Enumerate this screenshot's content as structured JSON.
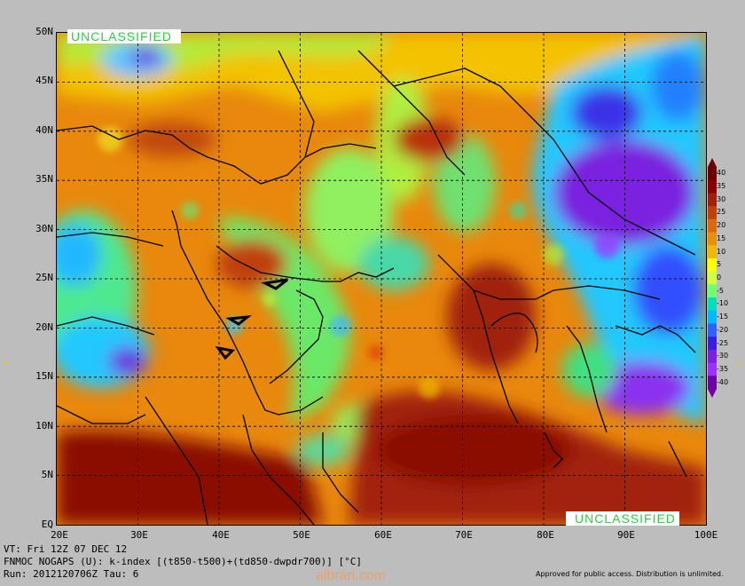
{
  "map": {
    "watermark_top": "UNCLASSIFIED",
    "watermark_bottom": "UNCLASSIFIED",
    "lat_labels": [
      "50N",
      "45N",
      "40N",
      "35N",
      "30N",
      "25N",
      "20N",
      "15N",
      "10N",
      "5N",
      "EQ"
    ],
    "lon_labels": [
      "20E",
      "30E",
      "40E",
      "50E",
      "60E",
      "70E",
      "80E",
      "90E",
      "100E"
    ],
    "extent": {
      "lon_min": 20,
      "lon_max": 100,
      "lat_min": 0,
      "lat_max": 50
    }
  },
  "colorbar": {
    "labels": [
      "40",
      "35",
      "30",
      "25",
      "20",
      "15",
      "10",
      "5",
      "0",
      "-5",
      "-10",
      "-15",
      "-20",
      "-25",
      "-30",
      "-35",
      "-40"
    ],
    "colors": [
      "#6a0000",
      "#8b0000",
      "#a0200a",
      "#c0400a",
      "#dd6a08",
      "#e8900a",
      "#f0b800",
      "#ffff00",
      "#cfff40",
      "#70ff70",
      "#00e0c0",
      "#00b8ff",
      "#3060ff",
      "#3a1ee0",
      "#7a20e0",
      "#a030ff",
      "#7000a0"
    ]
  },
  "footer": {
    "line1": "VT: Fri 12Z 07 DEC 12",
    "line2": "FNMOC NOGAPS (U): k-index [(t850-t500)+(td850-dwpdr700)] [°C]",
    "line3": "Run: 2012120706Z Tau: 6",
    "approval": "Approved for public access. Distribution is unlimited.",
    "watermark": "albrari.com"
  }
}
